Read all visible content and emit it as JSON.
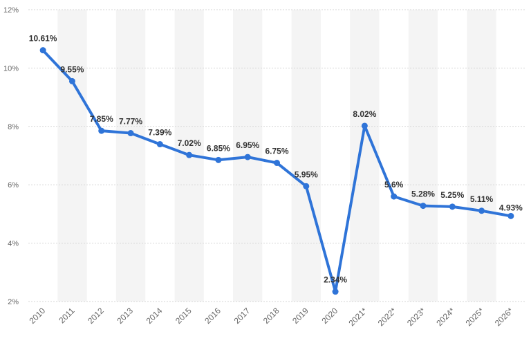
{
  "chart_data": {
    "type": "line",
    "title": "",
    "xlabel": "",
    "ylabel": "",
    "categories": [
      "2010",
      "2011",
      "2012",
      "2013",
      "2014",
      "2015",
      "2016",
      "2017",
      "2018",
      "2019",
      "2020",
      "2021*",
      "2022*",
      "2023*",
      "2024*",
      "2025*",
      "2026*"
    ],
    "series": [
      {
        "values": [
          10.61,
          9.55,
          7.85,
          7.77,
          7.39,
          7.02,
          6.85,
          6.95,
          6.75,
          5.95,
          2.34,
          8.02,
          5.6,
          5.28,
          5.25,
          5.11,
          4.93
        ],
        "labels": [
          "10.61%",
          "9.55%",
          "7.85%",
          "7.77%",
          "7.39%",
          "7.02%",
          "6.85%",
          "6.95%",
          "6.75%",
          "5.95%",
          "2.34%",
          "8.02%",
          "5.6%",
          "5.28%",
          "5.25%",
          "5.11%",
          "4.93%"
        ]
      }
    ],
    "ylim": [
      2,
      12
    ],
    "yticks": [
      2,
      4,
      6,
      8,
      10,
      12
    ],
    "ytick_labels": [
      "2%",
      "4%",
      "6%",
      "8%",
      "10%",
      "12%"
    ],
    "grid": true,
    "alternating_column_bands": true,
    "legend": "none",
    "colors": {
      "line": "#2f74d8",
      "band": "#f4f4f4",
      "grid": "#d6d6d6"
    }
  }
}
